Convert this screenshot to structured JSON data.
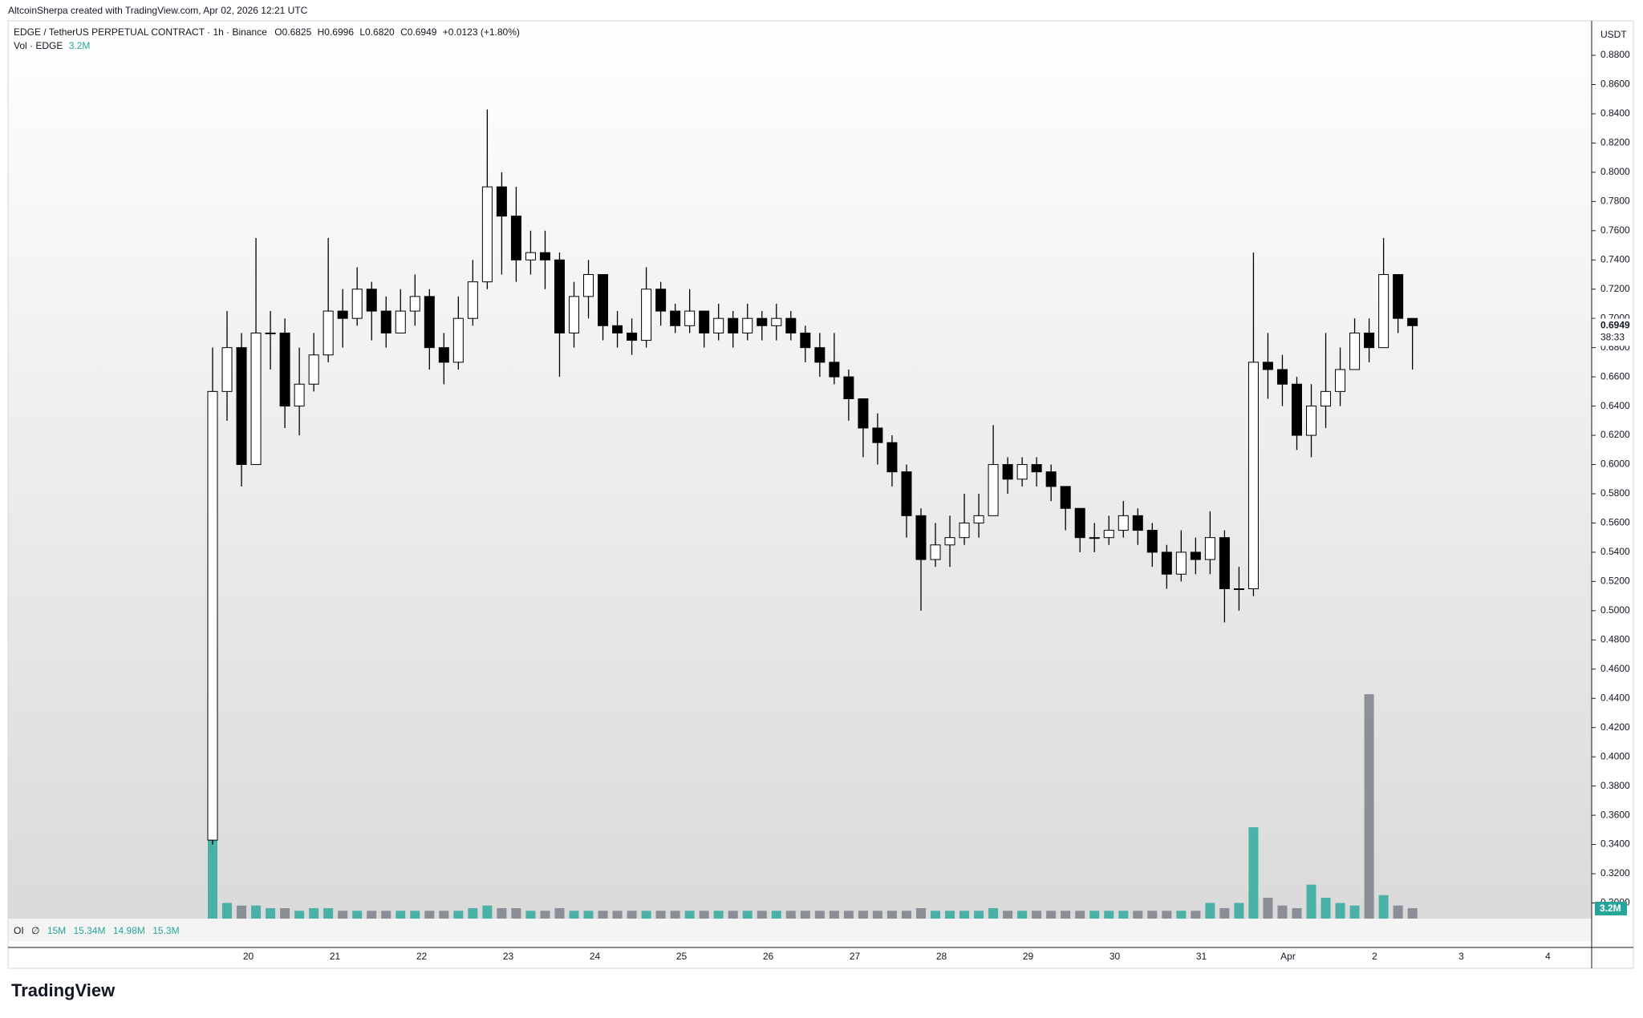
{
  "header": {
    "attribution": "AltcoinSherpa created with TradingView.com, Apr 02, 2026 12:21 UTC"
  },
  "chart_data": {
    "type": "candlestick",
    "legend": {
      "symbol": "EDGE / TetherUS PERPETUAL CONTRACT · 1h · Binance",
      "open": "O0.6825",
      "high": "H0.6996",
      "low": "L0.6820",
      "close": "C0.6949",
      "change": "+0.0123 (+1.80%)",
      "volume_title": "Vol · EDGE",
      "volume_value": "3.2M"
    },
    "currency": "USDT",
    "x_labels": [
      "20",
      "21",
      "22",
      "23",
      "24",
      "25",
      "26",
      "27",
      "28",
      "29",
      "30",
      "31",
      "Apr",
      "2",
      "3",
      "4"
    ],
    "open": [
      0.343,
      0.65,
      0.68,
      0.6,
      0.69,
      0.69,
      0.64,
      0.655,
      0.675,
      0.705,
      0.7,
      0.72,
      0.705,
      0.69,
      0.705,
      0.715,
      0.68,
      0.67,
      0.7,
      0.725,
      0.79,
      0.77,
      0.74,
      0.745,
      0.74,
      0.69,
      0.715,
      0.73,
      0.695,
      0.69,
      0.685,
      0.72,
      0.705,
      0.695,
      0.705,
      0.69,
      0.7,
      0.69,
      0.7,
      0.695,
      0.7,
      0.69,
      0.68,
      0.67,
      0.66,
      0.645,
      0.625,
      0.615,
      0.595,
      0.565,
      0.535,
      0.545,
      0.55,
      0.56,
      0.565,
      0.6,
      0.59,
      0.6,
      0.595,
      0.585,
      0.57,
      0.55,
      0.55,
      0.555,
      0.565,
      0.555,
      0.54,
      0.525,
      0.54,
      0.535,
      0.55,
      0.515,
      0.515,
      0.67,
      0.665,
      0.655,
      0.62,
      0.64,
      0.65,
      0.665,
      0.69,
      0.68,
      0.73,
      0.7
    ],
    "high": [
      0.68,
      0.705,
      0.69,
      0.755,
      0.705,
      0.7,
      0.68,
      0.69,
      0.755,
      0.72,
      0.735,
      0.725,
      0.715,
      0.72,
      0.73,
      0.72,
      0.69,
      0.715,
      0.74,
      0.843,
      0.8,
      0.79,
      0.76,
      0.76,
      0.745,
      0.725,
      0.74,
      0.73,
      0.705,
      0.7,
      0.735,
      0.725,
      0.71,
      0.72,
      0.705,
      0.71,
      0.705,
      0.71,
      0.705,
      0.71,
      0.705,
      0.695,
      0.69,
      0.69,
      0.665,
      0.645,
      0.635,
      0.62,
      0.6,
      0.57,
      0.56,
      0.565,
      0.58,
      0.58,
      0.627,
      0.605,
      0.605,
      0.605,
      0.6,
      0.585,
      0.57,
      0.56,
      0.565,
      0.575,
      0.57,
      0.56,
      0.545,
      0.555,
      0.55,
      0.568,
      0.555,
      0.53,
      0.745,
      0.69,
      0.675,
      0.66,
      0.655,
      0.69,
      0.68,
      0.7,
      0.7,
      0.755,
      0.73,
      0.7
    ],
    "low": [
      0.34,
      0.63,
      0.585,
      0.6,
      0.665,
      0.625,
      0.62,
      0.65,
      0.67,
      0.68,
      0.695,
      0.685,
      0.68,
      0.69,
      0.695,
      0.665,
      0.655,
      0.665,
      0.695,
      0.72,
      0.73,
      0.725,
      0.73,
      0.72,
      0.66,
      0.68,
      0.7,
      0.685,
      0.68,
      0.675,
      0.68,
      0.695,
      0.69,
      0.69,
      0.68,
      0.685,
      0.68,
      0.685,
      0.685,
      0.685,
      0.685,
      0.67,
      0.66,
      0.655,
      0.63,
      0.605,
      0.6,
      0.585,
      0.55,
      0.5,
      0.53,
      0.53,
      0.545,
      0.55,
      0.565,
      0.58,
      0.585,
      0.585,
      0.575,
      0.555,
      0.54,
      0.54,
      0.545,
      0.55,
      0.545,
      0.53,
      0.515,
      0.52,
      0.525,
      0.525,
      0.492,
      0.5,
      0.51,
      0.645,
      0.64,
      0.61,
      0.605,
      0.625,
      0.64,
      0.665,
      0.67,
      0.68,
      0.69,
      0.665
    ],
    "close": [
      0.65,
      0.68,
      0.6,
      0.69,
      0.69,
      0.64,
      0.655,
      0.675,
      0.705,
      0.7,
      0.72,
      0.705,
      0.69,
      0.705,
      0.715,
      0.68,
      0.67,
      0.7,
      0.725,
      0.79,
      0.77,
      0.74,
      0.745,
      0.74,
      0.69,
      0.715,
      0.73,
      0.695,
      0.69,
      0.685,
      0.72,
      0.705,
      0.695,
      0.705,
      0.69,
      0.7,
      0.69,
      0.7,
      0.695,
      0.7,
      0.69,
      0.68,
      0.67,
      0.66,
      0.645,
      0.625,
      0.615,
      0.595,
      0.565,
      0.535,
      0.545,
      0.55,
      0.56,
      0.565,
      0.6,
      0.59,
      0.6,
      0.595,
      0.585,
      0.57,
      0.55,
      0.55,
      0.555,
      0.565,
      0.555,
      0.54,
      0.525,
      0.54,
      0.535,
      0.55,
      0.515,
      0.515,
      0.67,
      0.665,
      0.655,
      0.62,
      0.64,
      0.65,
      0.665,
      0.69,
      0.68,
      0.73,
      0.7,
      0.695
    ],
    "volume": [
      30,
      6,
      5,
      5,
      4,
      4,
      3,
      4,
      4,
      3,
      3,
      3,
      3,
      3,
      3,
      3,
      3,
      3,
      4,
      5,
      4,
      4,
      3,
      3,
      4,
      3,
      3,
      3,
      3,
      3,
      3,
      3,
      3,
      3,
      3,
      3,
      3,
      3,
      3,
      3,
      3,
      3,
      3,
      3,
      3,
      3,
      3,
      3,
      3,
      4,
      3,
      3,
      3,
      3,
      4,
      3,
      3,
      3,
      3,
      3,
      3,
      3,
      3,
      3,
      3,
      3,
      3,
      3,
      3,
      6,
      4,
      6,
      35,
      8,
      5,
      4,
      13,
      8,
      6,
      5,
      86,
      9,
      5,
      4
    ],
    "up_color": "#ffffff",
    "down_color": "#000000",
    "wick_color": "#000000",
    "volume_up_color": "#26a69a",
    "volume_down_color": "#787b86",
    "ylim": [
      0.2893,
      0.9036
    ],
    "yticks": [
      {
        "value": 0.88,
        "label": "0.8800"
      },
      {
        "value": 0.86,
        "label": "0.8600"
      },
      {
        "value": 0.84,
        "label": "0.8400"
      },
      {
        "value": 0.82,
        "label": "0.8200"
      },
      {
        "value": 0.8,
        "label": "0.8000"
      },
      {
        "value": 0.78,
        "label": "0.7800"
      },
      {
        "value": 0.76,
        "label": "0.7600"
      },
      {
        "value": 0.74,
        "label": "0.7400"
      },
      {
        "value": 0.72,
        "label": "0.7200"
      },
      {
        "value": 0.7,
        "label": "0.7000"
      },
      {
        "value": 0.68,
        "label": "0.6800"
      },
      {
        "value": 0.66,
        "label": "0.6600"
      },
      {
        "value": 0.64,
        "label": "0.6400"
      },
      {
        "value": 0.62,
        "label": "0.6200"
      },
      {
        "value": 0.6,
        "label": "0.6000"
      },
      {
        "value": 0.58,
        "label": "0.5800"
      },
      {
        "value": 0.56,
        "label": "0.5600"
      },
      {
        "value": 0.54,
        "label": "0.5400"
      },
      {
        "value": 0.52,
        "label": "0.5200"
      },
      {
        "value": 0.5,
        "label": "0.5000"
      },
      {
        "value": 0.48,
        "label": "0.4800"
      },
      {
        "value": 0.46,
        "label": "0.4600"
      },
      {
        "value": 0.44,
        "label": "0.4400"
      },
      {
        "value": 0.42,
        "label": "0.4200"
      },
      {
        "value": 0.4,
        "label": "0.4000"
      },
      {
        "value": 0.38,
        "label": "0.3800"
      },
      {
        "value": 0.36,
        "label": "0.3600"
      },
      {
        "value": 0.34,
        "label": "0.3400"
      },
      {
        "value": 0.32,
        "label": "0.3200"
      },
      {
        "value": 0.3,
        "label": "0.3000"
      }
    ],
    "current_price": {
      "value": 0.6949,
      "label": "0.6949",
      "countdown": "38:33"
    },
    "volume_label": "3.2M",
    "oi": {
      "label": "OI",
      "symbol": "∅",
      "values": [
        "15M",
        "15.34M",
        "14.98M",
        "15.3M"
      ]
    }
  },
  "footer": {
    "logo": "TradingView"
  }
}
